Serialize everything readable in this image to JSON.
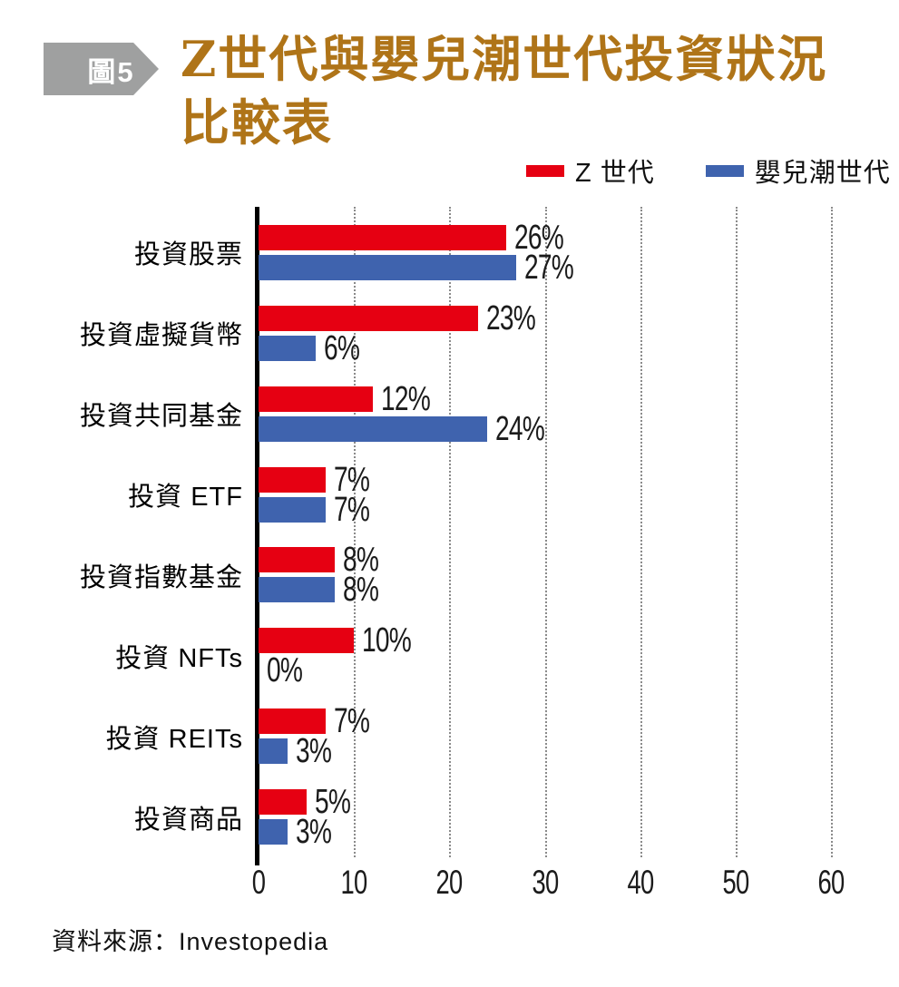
{
  "figure": {
    "badge_label": "圖5",
    "title_line1": "Z世代與嬰兒潮世代投資狀況",
    "title_line2": "比較表",
    "source": "資料來源：Investopedia"
  },
  "colors": {
    "title_gold": "#AF7418",
    "badge_gray": "#9FA0A0",
    "badge_text": "#FFFFFF",
    "genz_red": "#E60012",
    "boomer_blue": "#3F63AE",
    "axis_black": "#000000",
    "gridline_gray": "#8A8A8A"
  },
  "legend": [
    {
      "label": "Z 世代",
      "color": "#E60012"
    },
    {
      "label": "嬰兒潮世代",
      "color": "#3F63AE"
    }
  ],
  "chart_data": {
    "type": "bar",
    "orientation": "horizontal",
    "title": "Z世代與嬰兒潮世代投資狀況比較表",
    "categories": [
      "投資股票",
      "投資虛擬貨幣",
      "投資共同基金",
      "投資 ETF",
      "投資指數基金",
      "投資 NFTs",
      "投資 REITs",
      "投資商品"
    ],
    "series": [
      {
        "name": "Z 世代",
        "color": "#E60012",
        "values": [
          26,
          23,
          12,
          7,
          8,
          10,
          7,
          5
        ]
      },
      {
        "name": "嬰兒潮世代",
        "color": "#3F63AE",
        "values": [
          27,
          6,
          24,
          7,
          8,
          0,
          3,
          3
        ]
      }
    ],
    "value_suffix": "%",
    "xlim": [
      0,
      60
    ],
    "xticks": [
      0,
      10,
      20,
      30,
      40,
      50,
      60
    ],
    "grid": "vertical-dotted",
    "legend_position": "top-right"
  }
}
